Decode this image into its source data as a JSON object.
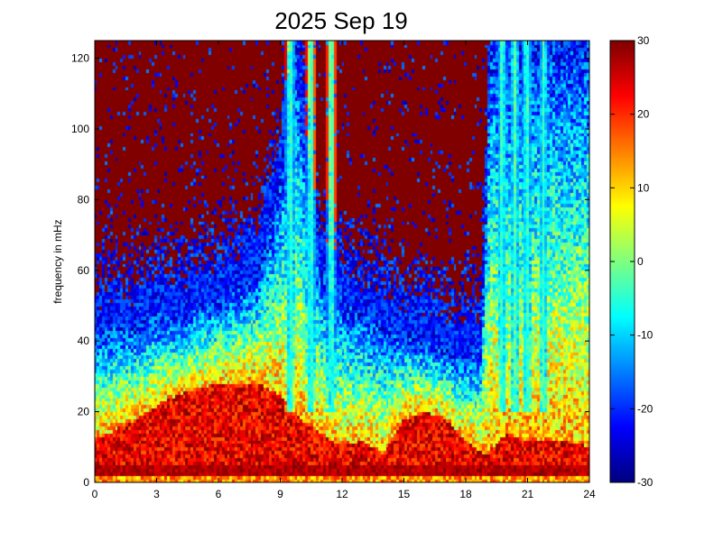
{
  "chart_data": {
    "type": "heatmap",
    "title": "2025 Sep 19",
    "xlabel": "",
    "ylabel": "frequency in mHz",
    "xlim": [
      0,
      24
    ],
    "ylim": [
      0,
      125
    ],
    "xticks": [
      0,
      3,
      6,
      9,
      12,
      15,
      18,
      21,
      24
    ],
    "yticks": [
      0,
      20,
      40,
      60,
      80,
      100,
      120
    ],
    "colormap": "jet",
    "clim": [
      -30,
      30
    ],
    "colorbar_ticks": [
      30,
      20,
      10,
      0,
      -10,
      -20,
      -30
    ],
    "spectrogram": {
      "noise_floor_top_mHz_by_hour": [
        [
          0,
          42
        ],
        [
          1,
          45
        ],
        [
          2,
          44
        ],
        [
          3,
          48
        ],
        [
          4,
          46
        ],
        [
          5,
          50
        ],
        [
          6,
          52
        ],
        [
          7,
          55
        ],
        [
          8,
          60
        ],
        [
          9,
          85
        ],
        [
          9.8,
          125
        ],
        [
          10.5,
          75
        ],
        [
          11,
          60
        ],
        [
          12,
          52
        ],
        [
          13,
          48
        ],
        [
          14,
          45
        ],
        [
          15,
          42
        ],
        [
          16,
          40
        ],
        [
          17,
          38
        ],
        [
          18,
          36
        ],
        [
          18.8,
          38
        ],
        [
          19.2,
          125
        ],
        [
          24,
          125
        ]
      ],
      "hot_band_top_mHz_by_hour": [
        [
          0,
          12
        ],
        [
          2,
          18
        ],
        [
          4,
          25
        ],
        [
          6,
          28
        ],
        [
          8,
          28
        ],
        [
          9,
          25
        ],
        [
          10,
          18
        ],
        [
          11,
          14
        ],
        [
          12,
          10
        ],
        [
          13,
          12
        ],
        [
          14,
          8
        ],
        [
          15,
          18
        ],
        [
          16,
          20
        ],
        [
          17,
          18
        ],
        [
          18,
          12
        ],
        [
          19,
          8
        ],
        [
          20,
          14
        ],
        [
          21,
          12
        ],
        [
          22,
          12
        ],
        [
          23,
          12
        ],
        [
          24,
          10
        ]
      ],
      "vertical_streaks_hour": [
        9.5,
        10.5,
        11.5,
        19.8,
        20.4,
        21.0,
        21.8
      ]
    }
  }
}
